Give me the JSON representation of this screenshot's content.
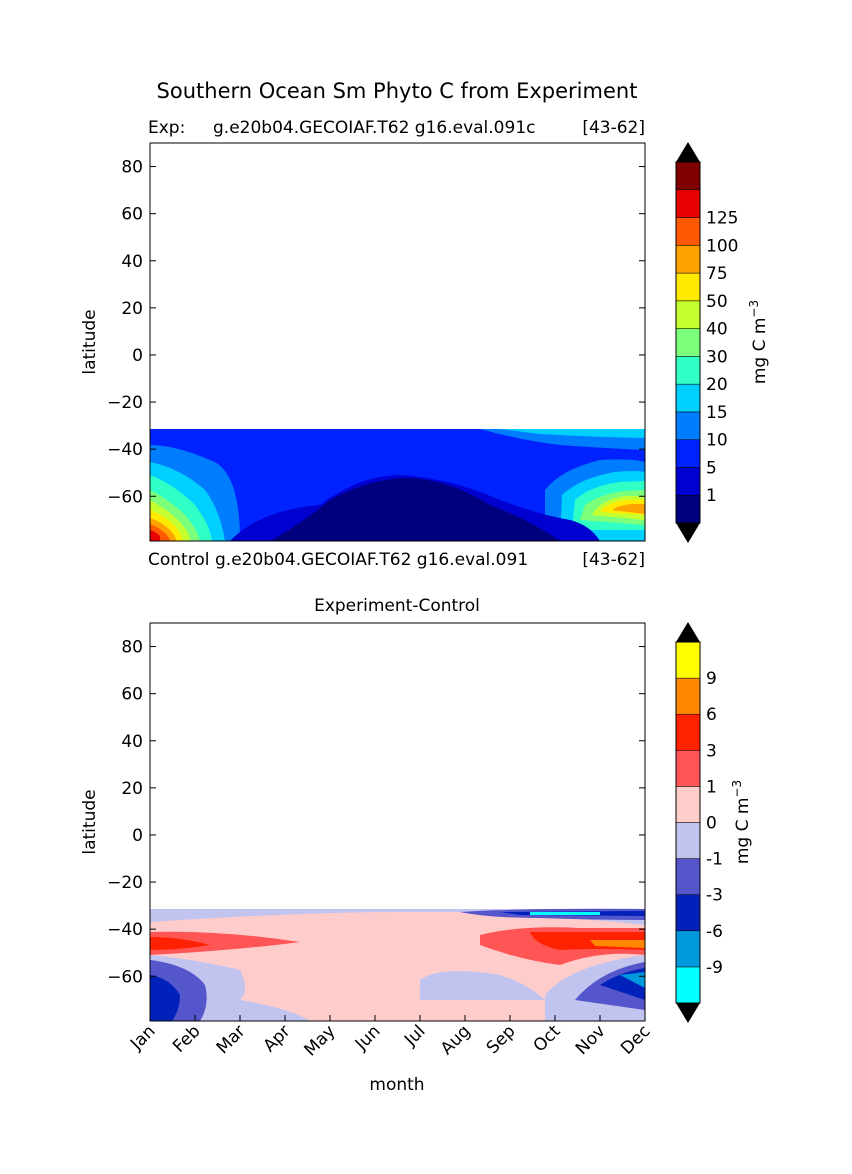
{
  "suptitle": "Southern Ocean Sm Phyto C from Experiment",
  "chart_data": [
    {
      "type": "heatmap",
      "panel": "experiment",
      "title_left": "Exp:",
      "title_center": "g.e20b04.GECOIAF.T62 g16.eval.091c",
      "title_right": "[43-62]",
      "ylabel": "latitude",
      "xlabel": "",
      "ylim": [
        -79,
        90
      ],
      "xlim": [
        0,
        11
      ],
      "y_ticks": [
        "80",
        "60",
        "40",
        "20",
        "0",
        "−20",
        "−40",
        "−60"
      ],
      "y_tick_values": [
        80,
        60,
        40,
        20,
        0,
        -20,
        -40,
        -60
      ],
      "data_lat_range": [
        -79,
        -32
      ],
      "colorbar": {
        "label": "mg C m",
        "label_exp": "−3",
        "levels": [
          "1",
          "5",
          "10",
          "15",
          "20",
          "30",
          "40",
          "50",
          "75",
          "100",
          "125"
        ],
        "colors": [
          "#00007f",
          "#0000d0",
          "#0022ff",
          "#007cff",
          "#00d0ff",
          "#30ffc6",
          "#7cff7a",
          "#c6ff30",
          "#ffea00",
          "#ffa200",
          "#ff5800",
          "#e80000",
          "#7f0000"
        ],
        "extend": "both"
      }
    },
    {
      "type": "heatmap",
      "panel": "difference",
      "title_left": "Control",
      "title_center": "g.e20b04.GECOIAF.T62 g16.eval.091",
      "title_right": "[43-62]",
      "title": "Experiment-Control",
      "ylabel": "latitude",
      "xlabel": "month",
      "ylim": [
        -79,
        90
      ],
      "xlim": [
        0,
        11
      ],
      "categories": [
        "Jan",
        "Feb",
        "Mar",
        "Apr",
        "May",
        "Jun",
        "Jul",
        "Aug",
        "Sep",
        "Oct",
        "Nov",
        "Dec"
      ],
      "y_ticks": [
        "80",
        "60",
        "40",
        "20",
        "0",
        "−20",
        "−40",
        "−60"
      ],
      "y_tick_values": [
        80,
        60,
        40,
        20,
        0,
        -20,
        -40,
        -60
      ],
      "data_lat_range": [
        -79,
        -32
      ],
      "colorbar": {
        "label": "mg C m",
        "label_exp": "−3",
        "levels": [
          "-9",
          "-6",
          "-3",
          "-1",
          "0",
          "1",
          "3",
          "6",
          "9"
        ],
        "colors": [
          "#00ffff",
          "#0099dd",
          "#0022bb",
          "#5555cc",
          "#c0c4ee",
          "#ffcccc",
          "#ff5555",
          "#ff2200",
          "#ff8800",
          "#ffff00"
        ],
        "extend": "both"
      }
    }
  ]
}
